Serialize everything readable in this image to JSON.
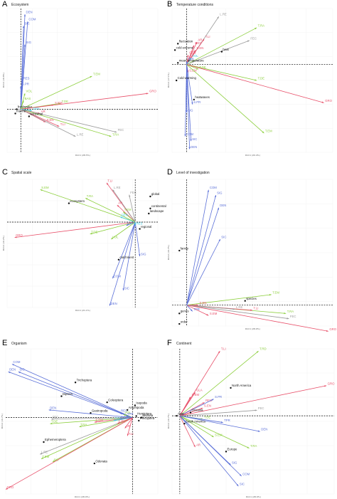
{
  "colors": {
    "red": "#e8506a",
    "green": "#8ccf3c",
    "blue": "#5a6fd8",
    "cyan": "#3fc9e0",
    "gray": "#9a9a9a",
    "black": "#111111"
  },
  "panels": [
    {
      "letter": "A",
      "title": "Ecosystem",
      "xlabel": "Dim1 (28.5%)",
      "ylabel": "Dim2 (19.8%)",
      "xlim": [
        -1,
        10
      ],
      "ylim": [
        -3,
        7
      ],
      "vectors": [
        {
          "label": "DEN",
          "x": 0.3,
          "y": 6.6,
          "color": "blue"
        },
        {
          "label": "COM",
          "x": 0.5,
          "y": 6.1,
          "color": "blue"
        },
        {
          "label": "SIC",
          "x": 0.2,
          "y": 5.8,
          "color": "blue"
        },
        {
          "label": "SIG",
          "x": 0.3,
          "y": 4.5,
          "color": "blue"
        },
        {
          "label": "RES",
          "x": 0.1,
          "y": 2.0,
          "color": "blue"
        },
        {
          "label": "S.PR",
          "x": 0.0,
          "y": 1.6,
          "color": "blue"
        },
        {
          "label": "VOL",
          "x": 0.3,
          "y": 1.1,
          "color": "green"
        },
        {
          "label": "BAS",
          "x": 0.2,
          "y": 0.6,
          "color": "green"
        },
        {
          "label": "T.EM",
          "x": 5.2,
          "y": 2.3,
          "color": "green"
        },
        {
          "label": "T.DE",
          "x": 2.9,
          "y": 0.4,
          "color": "green"
        },
        {
          "label": "T.RA",
          "x": 6.6,
          "y": -1.9,
          "color": "green"
        },
        {
          "label": "S.EM",
          "x": 2.4,
          "y": 0.3,
          "color": "red"
        },
        {
          "label": "GRO",
          "x": 9.3,
          "y": 1.1,
          "color": "red"
        },
        {
          "label": "AR",
          "x": 1.4,
          "y": -0.3,
          "color": "red"
        },
        {
          "label": "T.LI",
          "x": 2.8,
          "y": -1.2,
          "color": "red"
        },
        {
          "label": "S.EN",
          "x": 1.8,
          "y": -0.9,
          "color": "red"
        },
        {
          "label": "L.RE",
          "x": 4.0,
          "y": -1.9,
          "color": "gray"
        },
        {
          "label": "FEC",
          "x": 7.0,
          "y": -1.6,
          "color": "gray"
        },
        {
          "label": "GEN",
          "x": 0.8,
          "y": -0.1,
          "color": "cyan"
        }
      ],
      "points": [
        {
          "label": "freshwater",
          "x": -0.3,
          "y": 0.0
        },
        {
          "label": "marine",
          "x": -0.4,
          "y": -0.3
        },
        {
          "label": "terrestrial",
          "x": 0.6,
          "y": -0.5
        }
      ]
    },
    {
      "letter": "B",
      "title": "Temperature conditions",
      "xlabel": "Dim1 (20.4%)",
      "ylabel": "Dim2 (17.1%)",
      "xlim": [
        -1,
        10
      ],
      "ylim": [
        -5.5,
        3.5
      ],
      "vectors": [
        {
          "label": "L.RE",
          "x": 2.2,
          "y": 3.0,
          "color": "gray"
        },
        {
          "label": "T.RA",
          "x": 4.8,
          "y": 2.3,
          "color": "green"
        },
        {
          "label": "FEC",
          "x": 4.3,
          "y": 1.5,
          "color": "gray"
        },
        {
          "label": "T.LI",
          "x": 1.2,
          "y": 1.6,
          "color": "red"
        },
        {
          "label": "AR",
          "x": 0.7,
          "y": 1.4,
          "color": "red"
        },
        {
          "label": "RES",
          "x": 0.5,
          "y": 1.2,
          "color": "red"
        },
        {
          "label": "S.EN",
          "x": 0.6,
          "y": 0.9,
          "color": "red"
        },
        {
          "label": "GEN",
          "x": 0.1,
          "y": 0.6,
          "color": "red"
        },
        {
          "label": "VOL",
          "x": 0.3,
          "y": 0.4,
          "color": "cyan"
        },
        {
          "label": "TPR",
          "x": 0.0,
          "y": 0.2,
          "color": "blue"
        },
        {
          "label": "S.EM",
          "x": 0.1,
          "y": -0.5,
          "color": "red"
        },
        {
          "label": "T.DE",
          "x": 0.8,
          "y": -0.3,
          "color": "green"
        },
        {
          "label": "T.DE",
          "x": 4.8,
          "y": -1.0,
          "color": "green"
        },
        {
          "label": "GRO",
          "x": 9.4,
          "y": -2.4,
          "color": "red"
        },
        {
          "label": "T.EM",
          "x": 5.3,
          "y": -4.3,
          "color": "green"
        },
        {
          "label": "SIG",
          "x": 0.0,
          "y": -3.0,
          "color": "blue"
        },
        {
          "label": "S.PR",
          "x": 0.4,
          "y": -2.5,
          "color": "blue"
        },
        {
          "label": "DEN",
          "x": 0.2,
          "y": -5.3,
          "color": "blue"
        },
        {
          "label": "COM",
          "x": -0.1,
          "y": -4.5,
          "color": "blue"
        },
        {
          "label": "SIC",
          "x": 0.3,
          "y": -4.8,
          "color": "blue"
        }
      ],
      "points": [
        {
          "label": "fluctuation",
          "x": -0.6,
          "y": 1.3
        },
        {
          "label": "cold extreme",
          "x": -0.8,
          "y": 0.9
        },
        {
          "label": "heat",
          "x": 2.4,
          "y": 0.8
        },
        {
          "label": "mean temperature",
          "x": -0.6,
          "y": 0.1
        },
        {
          "label": "Cold warming",
          "x": -0.7,
          "y": -1.0
        },
        {
          "label": "heatwaves",
          "x": 0.5,
          "y": -2.2
        }
      ]
    },
    {
      "letter": "C",
      "title": "Spatial scale",
      "xlabel": "Dim1 (21.1%)",
      "ylabel": "Dim2 (16.2%)",
      "xlim": [
        -8.5,
        1.5
      ],
      "ylim": [
        -5,
        2.5
      ],
      "vectors": [
        {
          "label": "T.LI",
          "x": -1.9,
          "y": 2.3,
          "color": "red"
        },
        {
          "label": "L.RE",
          "x": -1.5,
          "y": 1.9,
          "color": "gray"
        },
        {
          "label": "S.EM",
          "x": -6.3,
          "y": 1.9,
          "color": "green"
        },
        {
          "label": "T.RA",
          "x": -3.3,
          "y": 1.4,
          "color": "green"
        },
        {
          "label": "AR",
          "x": -1.2,
          "y": 1.0,
          "color": "red"
        },
        {
          "label": "FEC",
          "x": -0.4,
          "y": 1.6,
          "color": "gray"
        },
        {
          "label": "T.EM",
          "x": -0.8,
          "y": 0.6,
          "color": "green"
        },
        {
          "label": "GEN",
          "x": -1.0,
          "y": 0.3,
          "color": "cyan"
        },
        {
          "label": "GRO",
          "x": -8.0,
          "y": -0.9,
          "color": "red"
        },
        {
          "label": "T.DE",
          "x": -3.0,
          "y": -0.7,
          "color": "green"
        },
        {
          "label": "S.PR",
          "x": -0.6,
          "y": -0.2,
          "color": "blue"
        },
        {
          "label": "VOL",
          "x": -1.6,
          "y": -1.0,
          "color": "green"
        },
        {
          "label": "SIG",
          "x": 0.3,
          "y": -2.0,
          "color": "blue"
        },
        {
          "label": "COM",
          "x": -1.5,
          "y": -3.3,
          "color": "blue"
        },
        {
          "label": "SIC",
          "x": -0.8,
          "y": -4.0,
          "color": "blue"
        },
        {
          "label": "DEN",
          "x": -1.7,
          "y": -4.9,
          "color": "blue"
        },
        {
          "label": "RES",
          "x": 0.0,
          "y": -0.2,
          "color": "cyan"
        }
      ],
      "points": [
        {
          "label": "global",
          "x": 1.0,
          "y": 1.5
        },
        {
          "label": "continental",
          "x": 1.0,
          "y": 0.8
        },
        {
          "label": "landscape",
          "x": 0.9,
          "y": 0.5
        },
        {
          "label": "regional",
          "x": 0.3,
          "y": -0.4
        },
        {
          "label": "ecosystem",
          "x": -4.4,
          "y": 1.1
        },
        {
          "label": "catchment",
          "x": -1.1,
          "y": -2.2
        }
      ]
    },
    {
      "letter": "D",
      "title": "Level of investigation",
      "xlabel": "Dim1 (28.9%)",
      "ylabel": "Dim2 (16.7%)",
      "xlim": [
        -1,
        10
      ],
      "ylim": [
        -2,
        12
      ],
      "vectors": [
        {
          "label": "COM",
          "x": 1.5,
          "y": 11.0,
          "color": "blue"
        },
        {
          "label": "SIG",
          "x": 2.0,
          "y": 10.5,
          "color": "blue"
        },
        {
          "label": "DEN",
          "x": 2.2,
          "y": 9.3,
          "color": "blue"
        },
        {
          "label": "SIC",
          "x": 2.3,
          "y": 6.3,
          "color": "blue"
        },
        {
          "label": "T.EM",
          "x": 5.8,
          "y": 1.0,
          "color": "green"
        },
        {
          "label": "S.EN",
          "x": 0.8,
          "y": 0.0,
          "color": "red"
        },
        {
          "label": "T.RA",
          "x": 6.8,
          "y": -0.8,
          "color": "green"
        },
        {
          "label": "FEC",
          "x": 7.0,
          "y": -1.3,
          "color": "gray"
        },
        {
          "label": "T.LI",
          "x": 4.5,
          "y": -0.5,
          "color": "red"
        },
        {
          "label": "S.EM",
          "x": 1.5,
          "y": -1.0,
          "color": "red"
        },
        {
          "label": "GRO",
          "x": 9.7,
          "y": -2.5,
          "color": "red"
        },
        {
          "label": "L.RE",
          "x": 3.3,
          "y": -0.4,
          "color": "gray"
        },
        {
          "label": "TPR",
          "x": 0.4,
          "y": -0.6,
          "color": "blue"
        }
      ],
      "points": [
        {
          "label": "species",
          "x": 4.0,
          "y": 0.4
        },
        {
          "label": "family",
          "x": -0.5,
          "y": 5.2
        },
        {
          "label": "genus",
          "x": -0.5,
          "y": -0.8
        },
        {
          "label": "order",
          "x": -0.5,
          "y": -1.8
        }
      ]
    },
    {
      "letter": "E",
      "title": "Organism",
      "xlabel": "Dim1 (28.9%)",
      "ylabel": "Dim2 (16.7%)",
      "xlim": [
        -10,
        2
      ],
      "ylim": [
        -5,
        4.5
      ],
      "vectors": [
        {
          "label": "COM",
          "x": -9.5,
          "y": 3.5,
          "color": "blue"
        },
        {
          "label": "DEN",
          "x": -9.8,
          "y": 3.0,
          "color": "blue"
        },
        {
          "label": "SIG",
          "x": -9.0,
          "y": 3.0,
          "color": "blue"
        },
        {
          "label": "DEN",
          "x": -6.6,
          "y": 0.5,
          "color": "blue"
        },
        {
          "label": "T.DE",
          "x": -6.5,
          "y": -0.4,
          "color": "green"
        },
        {
          "label": "FEC",
          "x": -6.4,
          "y": -0.1,
          "color": "gray"
        },
        {
          "label": "L.RE",
          "x": -7.3,
          "y": -2.4,
          "color": "gray"
        },
        {
          "label": "T.EM",
          "x": -7.2,
          "y": -2.7,
          "color": "green"
        },
        {
          "label": "SIC",
          "x": -6.3,
          "y": -2.9,
          "color": "green"
        },
        {
          "label": "GRO",
          "x": -10.0,
          "y": -4.7,
          "color": "red"
        },
        {
          "label": "T.RA",
          "x": -4.2,
          "y": -0.6,
          "color": "green"
        },
        {
          "label": "S.EM",
          "x": -3.0,
          "y": -0.3,
          "color": "red"
        },
        {
          "label": "GEN",
          "x": -1.5,
          "y": -0.2,
          "color": "cyan"
        },
        {
          "label": "RES",
          "x": -1.0,
          "y": 0.3,
          "color": "blue"
        },
        {
          "label": "S.PR",
          "x": -1.0,
          "y": -0.1,
          "color": "blue"
        },
        {
          "label": "VOL",
          "x": -0.7,
          "y": 0.2,
          "color": "green"
        },
        {
          "label": "AR",
          "x": -0.6,
          "y": -0.7,
          "color": "red"
        },
        {
          "label": "T.LI",
          "x": -0.4,
          "y": -1.2,
          "color": "red"
        },
        {
          "label": "S.EN",
          "x": -1.2,
          "y": -0.4,
          "color": "red"
        },
        {
          "label": "TPR",
          "x": -0.5,
          "y": 0.1,
          "color": "blue"
        }
      ],
      "points": [
        {
          "label": "Trichoptera",
          "x": -4.5,
          "y": 2.3
        },
        {
          "label": "Coleoptera",
          "x": -2.0,
          "y": 1.0
        },
        {
          "label": "Diptera",
          "x": -5.6,
          "y": 1.4
        },
        {
          "label": "Amphipoda",
          "x": -0.4,
          "y": 0.5
        },
        {
          "label": "Isopoda",
          "x": 0.2,
          "y": 0.8
        },
        {
          "label": "Gastropoda",
          "x": -3.3,
          "y": 0.3
        },
        {
          "label": "Ephemeroptera",
          "x": -7.0,
          "y": -1.6
        },
        {
          "label": "Odonata",
          "x": -3.0,
          "y": -3.0
        },
        {
          "label": "Hemiptera",
          "x": 0.3,
          "y": 0.1
        },
        {
          "label": "Plecoptera",
          "x": 0.5,
          "y": -0.2
        },
        {
          "label": "Bivalvia",
          "x": 0.7,
          "y": 0.0
        }
      ]
    },
    {
      "letter": "F",
      "title": "Continent",
      "xlabel": "Dim1 (28.9%)",
      "ylabel": "Dim2 (16.7%)",
      "xlim": [
        -0.5,
        10
      ],
      "ylim": [
        -7,
        6
      ],
      "vectors": [
        {
          "label": "T.LI",
          "x": 2.6,
          "y": 5.8,
          "color": "red"
        },
        {
          "label": "T.RD",
          "x": 5.1,
          "y": 5.8,
          "color": "green"
        },
        {
          "label": "GRO",
          "x": 9.5,
          "y": 2.7,
          "color": "red"
        },
        {
          "label": "GLA",
          "x": 1.0,
          "y": 2.1,
          "color": "red"
        },
        {
          "label": "S.EM",
          "x": 0.7,
          "y": 1.7,
          "color": "red"
        },
        {
          "label": "RES",
          "x": 1.6,
          "y": 1.2,
          "color": "red"
        },
        {
          "label": "S.PR",
          "x": 2.2,
          "y": 1.5,
          "color": "blue"
        },
        {
          "label": "FEC",
          "x": 5.0,
          "y": 0.5,
          "color": "gray"
        },
        {
          "label": "S.EN",
          "x": 1.5,
          "y": 0.7,
          "color": "red"
        },
        {
          "label": "T.DE",
          "x": 1.5,
          "y": -0.3,
          "color": "green"
        },
        {
          "label": "TPR",
          "x": 2.8,
          "y": -0.6,
          "color": "blue"
        },
        {
          "label": "DEN",
          "x": 5.2,
          "y": -1.4,
          "color": "blue"
        },
        {
          "label": "S.EM",
          "x": 2.2,
          "y": -1.9,
          "color": "green"
        },
        {
          "label": "T.RA",
          "x": 4.5,
          "y": -2.9,
          "color": "green"
        },
        {
          "label": "AR",
          "x": 1.0,
          "y": -2.8,
          "color": "red"
        },
        {
          "label": "SIG",
          "x": 3.3,
          "y": -4.4,
          "color": "blue"
        },
        {
          "label": "COM",
          "x": 4.0,
          "y": -5.4,
          "color": "blue"
        },
        {
          "label": "SIC",
          "x": 3.8,
          "y": -6.3,
          "color": "blue"
        }
      ],
      "points": [
        {
          "label": "North America",
          "x": 3.3,
          "y": 2.5
        },
        {
          "label": "Oceania",
          "x": 0.7,
          "y": 0.3
        },
        {
          "label": "South America",
          "x": 0.3,
          "y": -0.7
        },
        {
          "label": "Europe",
          "x": 3.0,
          "y": -3.2
        },
        {
          "label": "Asia",
          "x": -0.2,
          "y": 0.0
        }
      ]
    }
  ]
}
